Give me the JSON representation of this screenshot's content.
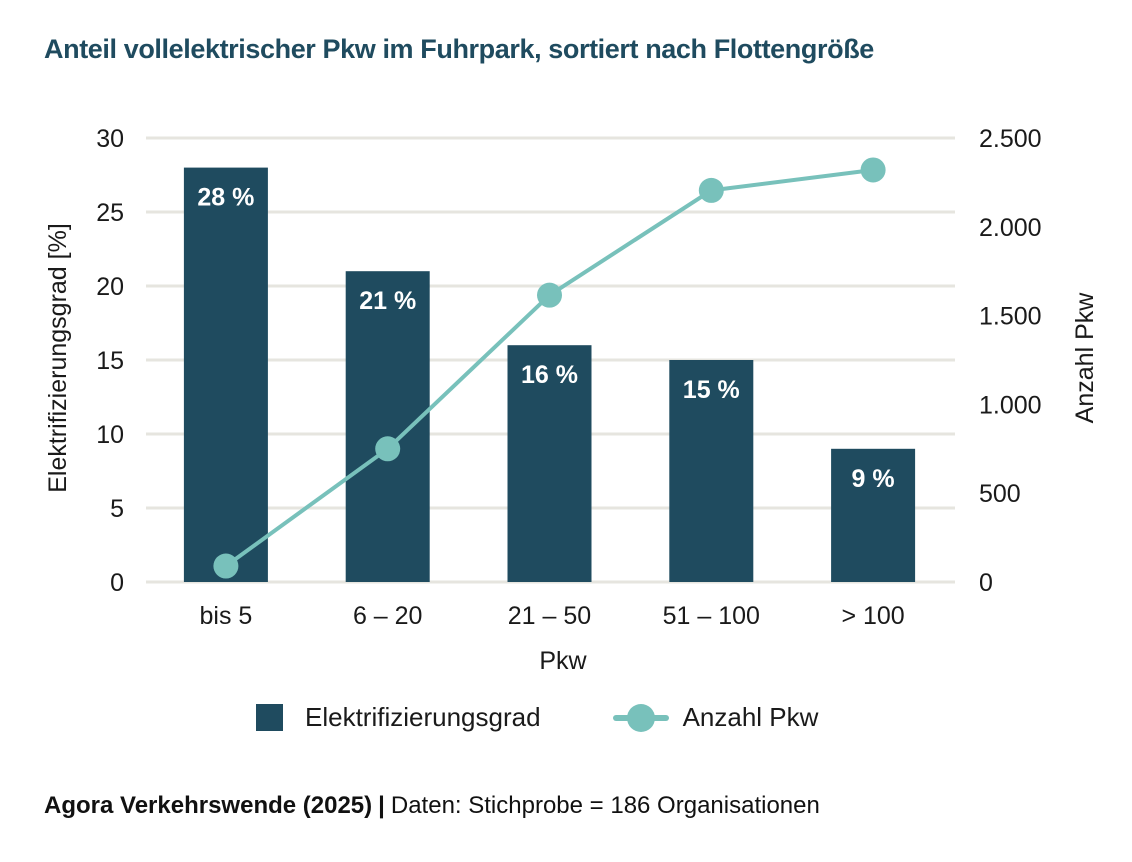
{
  "title": "Anteil vollelektrischer Pkw im Fuhrpark, sortiert nach Flottengröße",
  "colors": {
    "bar": "#1f4b5f",
    "line": "#78c1bb",
    "grid": "#e6e5df",
    "title": "#1f4b5f",
    "text": "#1a1a1a"
  },
  "chart_data": {
    "type": "bar",
    "title": "Anteil vollelektrischer Pkw im Fuhrpark, sortiert nach Flottengröße",
    "categories": [
      "bis 5",
      "6 – 20",
      "21 – 50",
      "51 – 100",
      "> 100"
    ],
    "xlabel": "Pkw",
    "ylabel": "Elektrifizierungsgrad [%]",
    "y2label": "Anzahl Pkw",
    "ylim": [
      0,
      30
    ],
    "y2lim": [
      0,
      2500
    ],
    "yticks": [
      "0",
      "5",
      "10",
      "15",
      "20",
      "25",
      "30"
    ],
    "ytick_values": [
      0,
      5,
      10,
      15,
      20,
      25,
      30
    ],
    "y2ticks": [
      "0",
      "500",
      "1.000",
      "1.500",
      "2.000",
      "2.500"
    ],
    "y2tick_values": [
      0,
      500,
      1000,
      1500,
      2000,
      2500
    ],
    "grid": true,
    "legend_position": "bottom",
    "series": [
      {
        "name": "Elektrifizierungsgrad",
        "type": "bar",
        "axis": "left",
        "values": [
          28,
          21,
          16,
          15,
          9
        ],
        "labels": [
          "28 %",
          "21 %",
          "16 %",
          "15 %",
          "9 %"
        ]
      },
      {
        "name": "Anzahl Pkw",
        "type": "line",
        "axis": "right",
        "values": [
          90,
          750,
          1615,
          2205,
          2320
        ]
      }
    ]
  },
  "legend": {
    "bar_label": "Elektrifizierungsgrad",
    "line_label": "Anzahl Pkw"
  },
  "footer": {
    "source": "Agora Verkehrswende (2025)",
    "separator": "|",
    "note": "Daten: Stichprobe = 186 Organisationen"
  }
}
